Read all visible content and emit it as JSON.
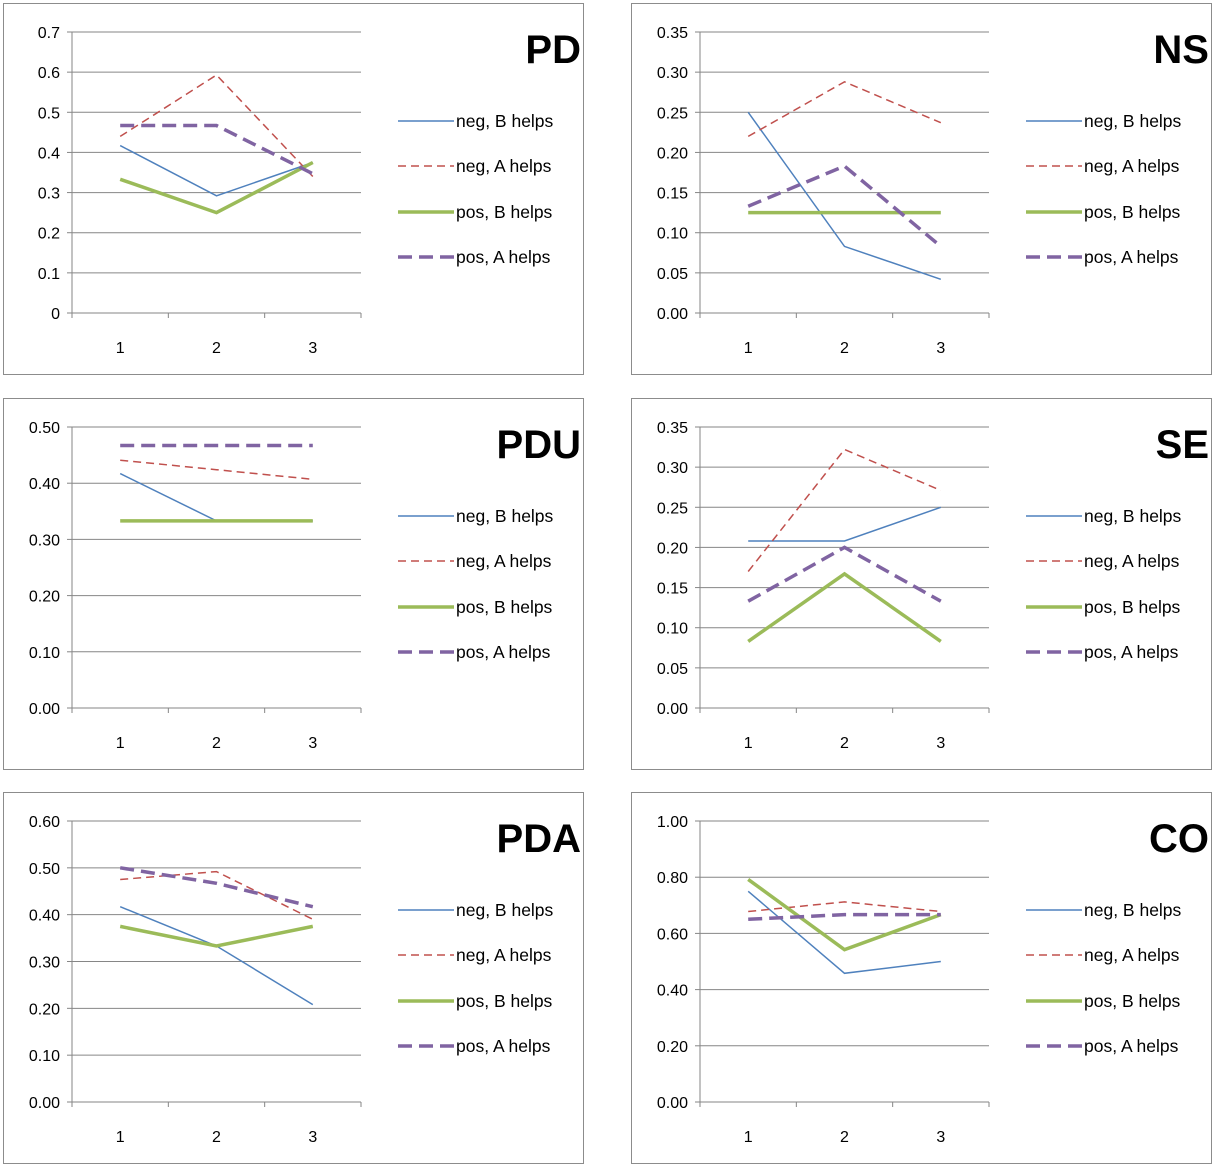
{
  "legend_labels": [
    "neg, B helps",
    "neg, A helps",
    "pos, B helps",
    "pos, A helps"
  ],
  "series_colors": [
    "#4f81bd",
    "#c0504d",
    "#9bbb59",
    "#8064a2"
  ],
  "chart_data": [
    {
      "type": "line",
      "title": "PD",
      "x": [
        1,
        2,
        3
      ],
      "ylim": [
        0,
        0.7
      ],
      "yticks": [
        "0",
        "0.1",
        "0.2",
        "0.3",
        "0.4",
        "0.5",
        "0.6",
        "0.7"
      ],
      "grid": true,
      "legend": "right",
      "series": [
        {
          "name": "neg, B helps",
          "values": [
            0.417,
            0.292,
            0.375
          ]
        },
        {
          "name": "neg, A helps",
          "values": [
            0.44,
            0.593,
            0.34
          ]
        },
        {
          "name": "pos, B helps",
          "values": [
            0.333,
            0.25,
            0.375
          ]
        },
        {
          "name": "pos, A helps",
          "values": [
            0.467,
            0.467,
            0.347
          ]
        }
      ]
    },
    {
      "type": "line",
      "title": "NS",
      "x": [
        1,
        2,
        3
      ],
      "ylim": [
        0,
        0.35
      ],
      "yticks": [
        "0.00",
        "0.05",
        "0.10",
        "0.15",
        "0.20",
        "0.25",
        "0.30",
        "0.35"
      ],
      "grid": true,
      "legend": "right",
      "series": [
        {
          "name": "neg, B helps",
          "values": [
            0.25,
            0.083,
            0.042
          ]
        },
        {
          "name": "neg, A helps",
          "values": [
            0.22,
            0.288,
            0.237
          ]
        },
        {
          "name": "pos, B helps",
          "values": [
            0.125,
            0.125,
            0.125
          ]
        },
        {
          "name": "pos, A helps",
          "values": [
            0.133,
            0.183,
            0.083
          ]
        }
      ]
    },
    {
      "type": "line",
      "title": "PDU",
      "x": [
        1,
        2,
        3
      ],
      "ylim": [
        0,
        0.5
      ],
      "yticks": [
        "0.00",
        "0.10",
        "0.20",
        "0.30",
        "0.40",
        "0.50"
      ],
      "grid": true,
      "legend": "right",
      "series": [
        {
          "name": "neg, B helps",
          "values": [
            0.417,
            0.333,
            0.333
          ]
        },
        {
          "name": "neg, A helps",
          "values": [
            0.441,
            0.424,
            0.407
          ]
        },
        {
          "name": "pos, B helps",
          "values": [
            0.333,
            0.333,
            0.333
          ]
        },
        {
          "name": "pos, A helps",
          "values": [
            0.467,
            0.467,
            0.467
          ]
        }
      ]
    },
    {
      "type": "line",
      "title": "SE",
      "x": [
        1,
        2,
        3
      ],
      "ylim": [
        0,
        0.35
      ],
      "yticks": [
        "0.00",
        "0.05",
        "0.10",
        "0.15",
        "0.20",
        "0.25",
        "0.30",
        "0.35"
      ],
      "grid": true,
      "legend": "right",
      "series": [
        {
          "name": "neg, B helps",
          "values": [
            0.208,
            0.208,
            0.25
          ]
        },
        {
          "name": "neg, A helps",
          "values": [
            0.17,
            0.322,
            0.271
          ]
        },
        {
          "name": "pos, B helps",
          "values": [
            0.083,
            0.167,
            0.083
          ]
        },
        {
          "name": "pos, A helps",
          "values": [
            0.133,
            0.2,
            0.133
          ]
        }
      ]
    },
    {
      "type": "line",
      "title": "PDA",
      "x": [
        1,
        2,
        3
      ],
      "ylim": [
        0,
        0.6
      ],
      "yticks": [
        "0.00",
        "0.10",
        "0.20",
        "0.30",
        "0.40",
        "0.50",
        "0.60"
      ],
      "grid": true,
      "legend": "right",
      "series": [
        {
          "name": "neg, B helps",
          "values": [
            0.417,
            0.333,
            0.208
          ]
        },
        {
          "name": "neg, A helps",
          "values": [
            0.475,
            0.492,
            0.39
          ]
        },
        {
          "name": "pos, B helps",
          "values": [
            0.375,
            0.333,
            0.375
          ]
        },
        {
          "name": "pos, A helps",
          "values": [
            0.5,
            0.467,
            0.417
          ]
        }
      ]
    },
    {
      "type": "line",
      "title": "CO",
      "x": [
        1,
        2,
        3
      ],
      "ylim": [
        0,
        1
      ],
      "yticks": [
        "0.00",
        "0.20",
        "0.40",
        "0.60",
        "0.80",
        "1.00"
      ],
      "grid": true,
      "legend": "right",
      "series": [
        {
          "name": "neg, B helps",
          "values": [
            0.75,
            0.458,
            0.5
          ]
        },
        {
          "name": "neg, A helps",
          "values": [
            0.678,
            0.712,
            0.678
          ]
        },
        {
          "name": "pos, B helps",
          "values": [
            0.792,
            0.542,
            0.667
          ]
        },
        {
          "name": "pos, A helps",
          "values": [
            0.65,
            0.667,
            0.667
          ]
        }
      ]
    }
  ]
}
